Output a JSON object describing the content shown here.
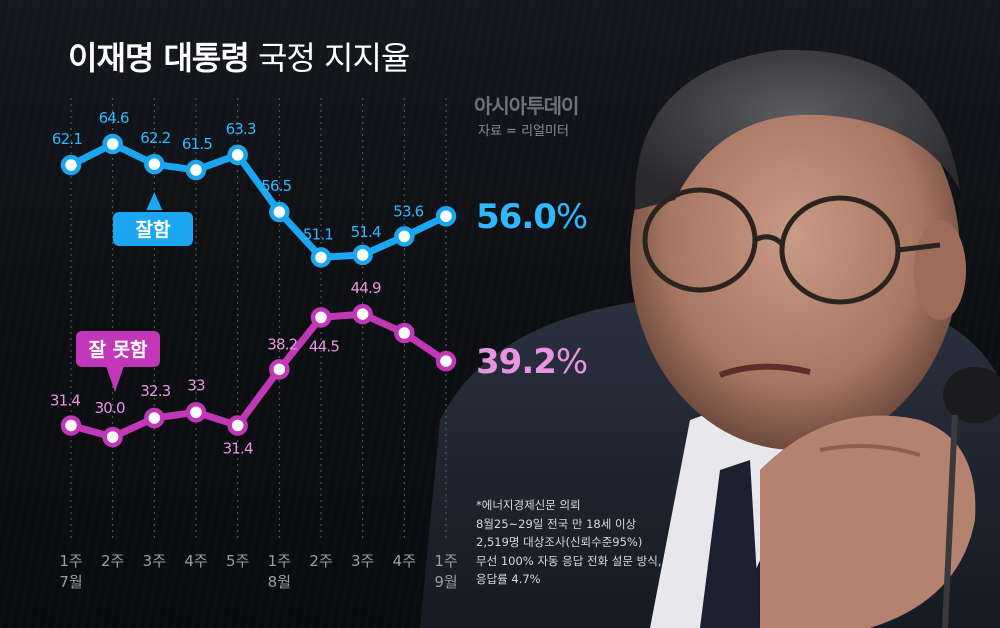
{
  "title": {
    "bold": "이재명 대통령",
    "light": "국정 지지율"
  },
  "brand": "아시아투데이",
  "source": "자료 = 리얼미터",
  "note_lines": [
    "*에너지경제신문 의뢰",
    "8월25~29일 전국 만 18세 이상",
    "2,519명 대상조사(신뢰수준95%)",
    "무선 100% 자동 응답 전화 설문 방식,",
    "응답률 4.7%"
  ],
  "colors": {
    "approve": "#1aa6f0",
    "disapprove": "#c236b8",
    "approve_text": "#2fb8ff",
    "disapprove_text": "#e894e0"
  },
  "chart_data": {
    "type": "line",
    "categories": [
      "1주 7월",
      "2주",
      "3주",
      "4주",
      "5주",
      "1주 8월",
      "2주",
      "3주",
      "4주",
      "1주 9월"
    ],
    "tick_week": [
      "1주",
      "2주",
      "3주",
      "4주",
      "5주",
      "1주",
      "2주",
      "3주",
      "4주",
      "1주"
    ],
    "tick_month": [
      "7월",
      "",
      "",
      "",
      "",
      "8월",
      "",
      "",
      "",
      "9월"
    ],
    "series": [
      {
        "name": "잘함",
        "labels": [
          "62.1",
          "64.6",
          "62.2",
          "61.5",
          "63.3",
          "56.5",
          "51.1",
          "51.4",
          "53.6",
          ""
        ],
        "values": [
          62.1,
          64.6,
          62.2,
          61.5,
          63.3,
          56.5,
          51.1,
          51.4,
          53.6,
          56.0
        ],
        "final": {
          "number": "56.0",
          "unit": "%"
        }
      },
      {
        "name": "잘 못함",
        "labels": [
          "31.4",
          "30.0",
          "32.3",
          "33",
          "31.4",
          "38.2",
          "44.5",
          "44.9",
          "",
          ""
        ],
        "values": [
          31.4,
          30.0,
          32.3,
          33.0,
          31.4,
          38.2,
          44.5,
          44.9,
          42.6,
          39.2
        ],
        "final": {
          "number": "39.2",
          "unit": "%"
        }
      }
    ],
    "grid": "vertical-dotted",
    "legend": "callout-bubbles"
  }
}
